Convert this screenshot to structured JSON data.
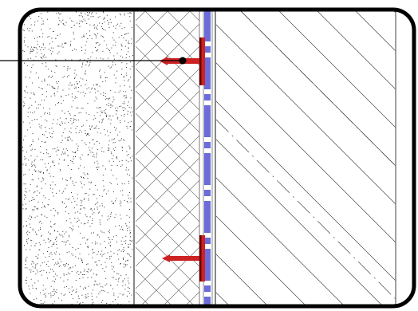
{
  "diagram": {
    "kind": "wall-section-detail",
    "layers": [
      {
        "name": "stucco-render",
        "pattern": "dots"
      },
      {
        "name": "insulation-board",
        "pattern": "cross-hatch"
      },
      {
        "name": "membrane",
        "pattern": "dashed-blue"
      },
      {
        "name": "structural-wall",
        "pattern": "diagonal-hatch"
      }
    ],
    "fasteners": 2,
    "leader_line": true
  },
  "colors": {
    "frame": "#000000",
    "membrane_blue": "#6b6bdc",
    "fastener_red": "#cc2222",
    "fastener_dark": "#6a0000",
    "hatch": "#444444",
    "dots": "#333333"
  }
}
